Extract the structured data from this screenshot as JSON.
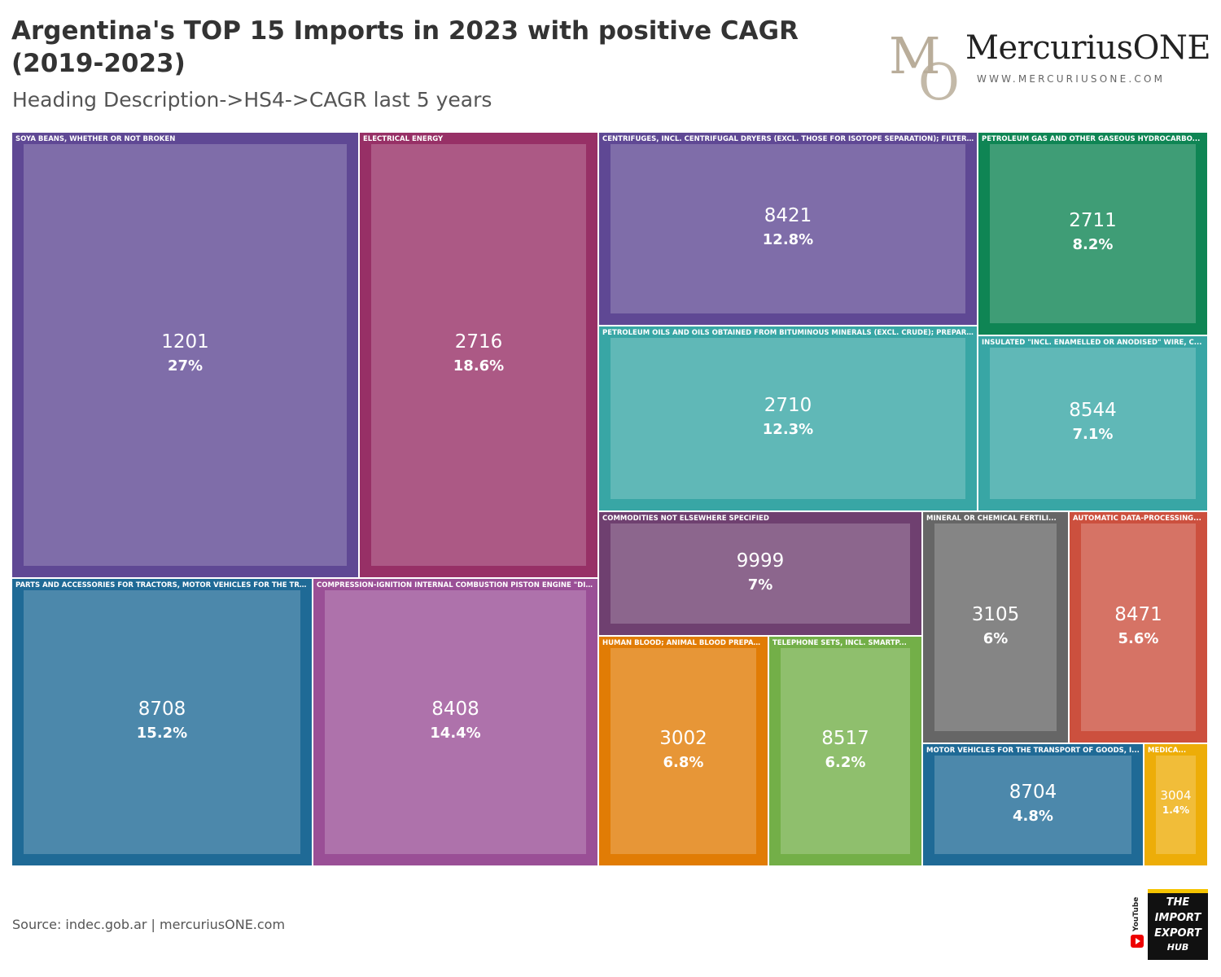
{
  "header": {
    "title": "Argentina's TOP 15 Imports in 2023 with positive CAGR (2019-2023)",
    "subtitle": "Heading Description->HS4->CAGR last 5 years"
  },
  "brand": {
    "mark_letters": "MO",
    "name": "MercuriusONE",
    "url": "WWW.MERCURIUSONE.COM"
  },
  "footer": {
    "source": "Source: indec.gob.ar | mercuriusONE.com"
  },
  "badge": {
    "platform": "YouTube",
    "lines": [
      "THE",
      "IMPORT",
      "EXPORT",
      "HUB"
    ]
  },
  "chart_data": {
    "type": "treemap",
    "title": "Argentina's TOP 15 Imports in 2023 with positive CAGR (2019-2023)",
    "subtitle": "Heading Description->HS4->CAGR last 5 years",
    "hierarchy": [
      "Heading Description",
      "HS4",
      "CAGR last 5 years"
    ],
    "items": [
      {
        "label": "SOYA BEANS, WHETHER OR NOT BROKEN",
        "hs4": "1201",
        "cagr": "27%",
        "cagr_value": 27,
        "color": "#5f4894"
      },
      {
        "label": "ELECTRICAL ENERGY",
        "hs4": "2716",
        "cagr": "18.6%",
        "cagr_value": 18.6,
        "color": "#973066"
      },
      {
        "label": "PARTS AND ACCESSORIES FOR TRACTORS, MOTOR VEHICLES FOR THE TRANSPORT OF TEN OR MORE PERSONS, MOTOR CARS AND OTHER MOTOR VEHICLES",
        "hs4": "8708",
        "cagr": "15.2%",
        "cagr_value": 15.2,
        "color": "#1f6a96"
      },
      {
        "label": "COMPRESSION-IGNITION INTERNAL COMBUSTION PISTON ENGINE \"DIESEL OR SEMI-DIESEL ENGINE\"",
        "hs4": "8408",
        "cagr": "14.4%",
        "cagr_value": 14.4,
        "color": "#9a4f96"
      },
      {
        "label": "CENTRIFUGES, INCL. CENTRIFUGAL DRYERS (EXCL. THOSE FOR ISOTOPE SEPARATION); FILTERING OR PURIFYING MACHINERY AND APPARATUS",
        "hs4": "8421",
        "cagr": "12.8%",
        "cagr_value": 12.8,
        "color": "#5f4894"
      },
      {
        "label": "PETROLEUM OILS AND OILS OBTAINED FROM BITUMINOUS MINERALS (EXCL. CRUDE); PREPARATIONS CONTAINING BY WEIGHT >= 70% OF PETROLEUM OILS",
        "hs4": "2710",
        "cagr": "12.3%",
        "cagr_value": 12.3,
        "color": "#38a6a5"
      },
      {
        "label": "PETROLEUM GAS AND OTHER GASEOUS HYDROCARBO...",
        "hs4": "2711",
        "cagr": "8.2%",
        "cagr_value": 8.2,
        "color": "#0f8554"
      },
      {
        "label": "INSULATED \"INCL. ENAMELLED OR ANODISED\" WIRE, C...",
        "hs4": "8544",
        "cagr": "7.1%",
        "cagr_value": 7.1,
        "color": "#38a6a5"
      },
      {
        "label": "COMMODITIES NOT ELSEWHERE SPECIFIED",
        "hs4": "9999",
        "cagr": "7%",
        "cagr_value": 7,
        "color": "#6f4070"
      },
      {
        "label": "HUMAN BLOOD; ANIMAL BLOOD PREPAR...",
        "hs4": "3002",
        "cagr": "6.8%",
        "cagr_value": 6.8,
        "color": "#e17c05"
      },
      {
        "label": "TELEPHONE SETS, INCL. SMARTP...",
        "hs4": "8517",
        "cagr": "6.2%",
        "cagr_value": 6.2,
        "color": "#73af48"
      },
      {
        "label": "MINERAL OR CHEMICAL FERTILI...",
        "hs4": "3105",
        "cagr": "6%",
        "cagr_value": 6,
        "color": "#666666"
      },
      {
        "label": "AUTOMATIC DATA-PROCESSING...",
        "hs4": "8471",
        "cagr": "5.6%",
        "cagr_value": 5.6,
        "color": "#cc503e"
      },
      {
        "label": "MOTOR VEHICLES FOR THE TRANSPORT OF GOODS, I...",
        "hs4": "8704",
        "cagr": "4.8%",
        "cagr_value": 4.8,
        "color": "#1f6a96"
      },
      {
        "label": "MEDICA...",
        "hs4": "3004",
        "cagr": "1.4%",
        "cagr_value": 1.4,
        "color": "#edad08"
      }
    ]
  }
}
